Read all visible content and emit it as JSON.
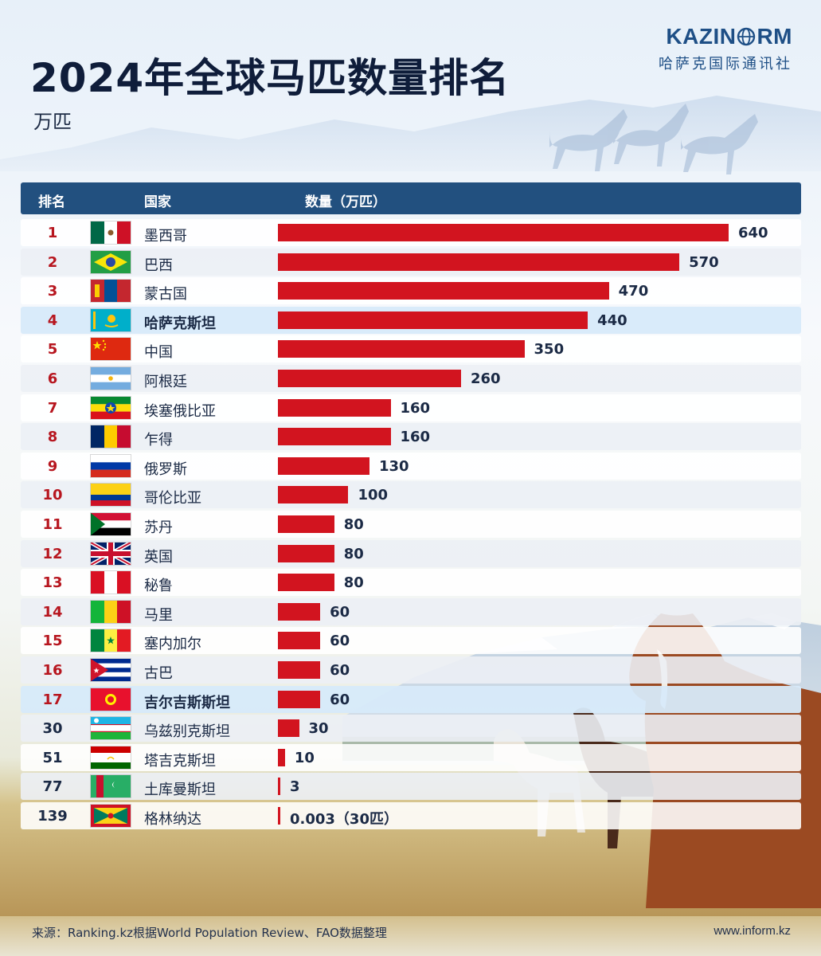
{
  "header": {
    "title": "2024年全球马匹数量排名",
    "unit": "万匹",
    "logo_left": "KAZIN",
    "logo_right": "RM",
    "logo_subtitle": "哈萨克国际通讯社"
  },
  "table_header": {
    "rank": "排名",
    "country": "国家",
    "quantity": "数量（万匹）"
  },
  "footer": {
    "source": "来源：Ranking.kz根据World Population Review、FAO数据整理",
    "website": "www.inform.kz"
  },
  "colors": {
    "bar": "#d2141f",
    "header_bg": "#22507f",
    "rank_red": "#b7161f",
    "highlight_row": "#d7eafa"
  },
  "chart_data": {
    "type": "bar",
    "orientation": "horizontal",
    "categories": [
      "墨西哥",
      "巴西",
      "蒙古国",
      "哈萨克斯坦",
      "中国",
      "阿根廷",
      "埃塞俄比亚",
      "乍得",
      "俄罗斯",
      "哥伦比亚",
      "苏丹",
      "英国",
      "秘鲁",
      "马里",
      "塞内加尔",
      "古巴",
      "吉尔吉斯斯坦",
      "乌兹别克斯坦",
      "塔吉克斯坦",
      "土库曼斯坦",
      "格林纳达"
    ],
    "ranks": [
      "1",
      "2",
      "3",
      "4",
      "5",
      "6",
      "7",
      "8",
      "9",
      "10",
      "11",
      "12",
      "13",
      "14",
      "15",
      "16",
      "17",
      "30",
      "51",
      "77",
      "139"
    ],
    "values": [
      640,
      570,
      470,
      440,
      350,
      260,
      160,
      160,
      130,
      100,
      80,
      80,
      80,
      60,
      60,
      60,
      60,
      30,
      10,
      3,
      0.003
    ],
    "value_labels": [
      "640",
      "570",
      "470",
      "440",
      "350",
      "260",
      "160",
      "160",
      "130",
      "100",
      "80",
      "80",
      "80",
      "60",
      "60",
      "60",
      "60",
      "30",
      "10",
      "3",
      "0.003（30匹）"
    ],
    "highlighted": [
      "哈萨克斯坦",
      "吉尔吉斯斯坦"
    ],
    "flags": [
      "mexico-flag-icon",
      "brazil-flag-icon",
      "mongolia-flag-icon",
      "kazakhstan-flag-icon",
      "china-flag-icon",
      "argentina-flag-icon",
      "ethiopia-flag-icon",
      "chad-flag-icon",
      "russia-flag-icon",
      "colombia-flag-icon",
      "sudan-flag-icon",
      "uk-flag-icon",
      "peru-flag-icon",
      "mali-flag-icon",
      "senegal-flag-icon",
      "cuba-flag-icon",
      "kyrgyzstan-flag-icon",
      "uzbekistan-flag-icon",
      "tajikistan-flag-icon",
      "turkmenistan-flag-icon",
      "grenada-flag-icon"
    ],
    "title": "2024年全球马匹数量排名",
    "ylabel": "数量（万匹）",
    "xlim": [
      0,
      640
    ]
  }
}
